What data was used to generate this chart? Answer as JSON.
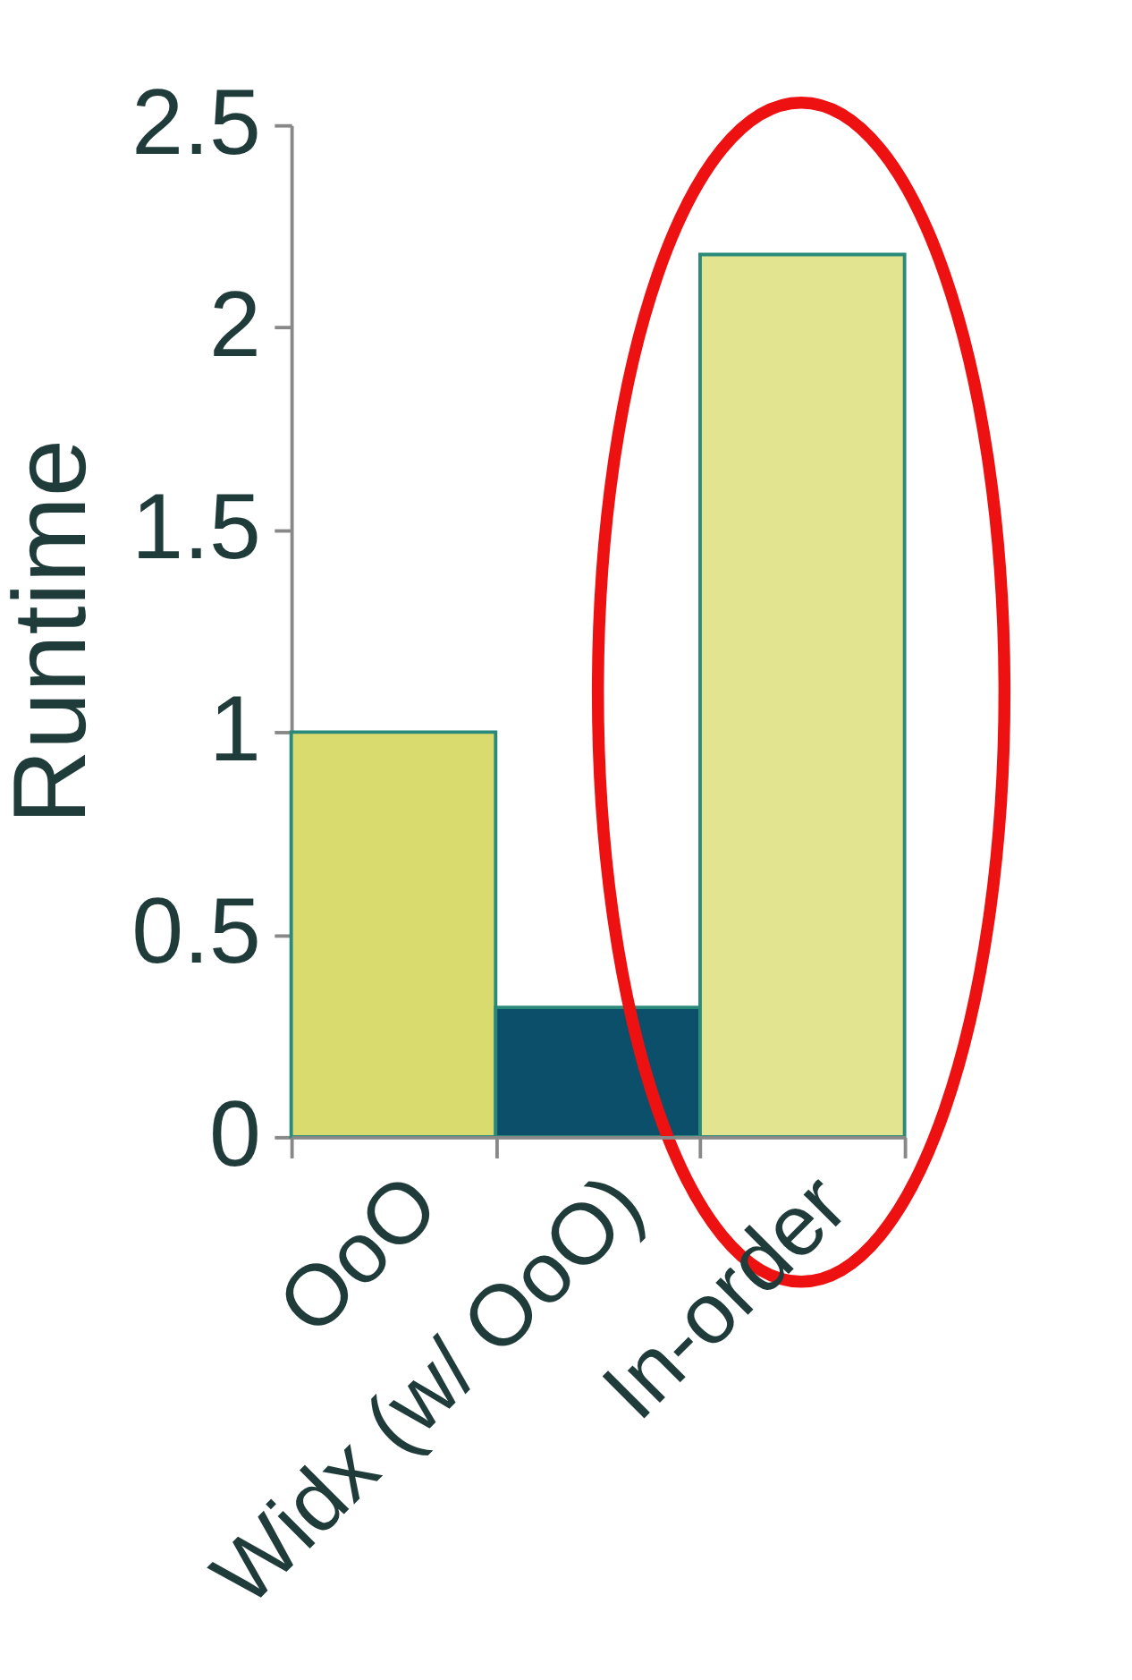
{
  "chart_data": {
    "type": "bar",
    "ylabel": "Runtime",
    "categories": [
      "OoO",
      "Widx (w/ OoO)",
      "In-order"
    ],
    "values": [
      1.0,
      0.32,
      2.18
    ],
    "colors": [
      "#d9db6e",
      "#0b4f6a",
      "#e3e48f"
    ],
    "ylim": [
      0,
      2.5
    ],
    "yticks": [
      0,
      0.5,
      1,
      1.5,
      2,
      2.5
    ],
    "grid": false
  }
}
